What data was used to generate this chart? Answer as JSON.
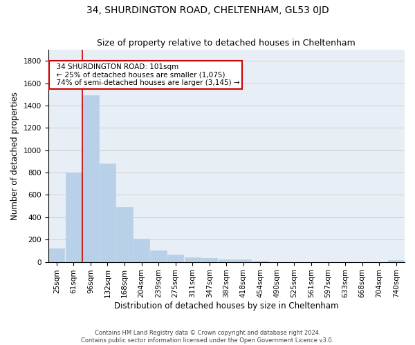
{
  "title": "34, SHURDINGTON ROAD, CHELTENHAM, GL53 0JD",
  "subtitle": "Size of property relative to detached houses in Cheltenham",
  "xlabel": "Distribution of detached houses by size in Cheltenham",
  "ylabel": "Number of detached properties",
  "footer_line1": "Contains HM Land Registry data © Crown copyright and database right 2024.",
  "footer_line2": "Contains public sector information licensed under the Open Government Licence v3.0.",
  "categories": [
    "25sqm",
    "61sqm",
    "96sqm",
    "132sqm",
    "168sqm",
    "204sqm",
    "239sqm",
    "275sqm",
    "311sqm",
    "347sqm",
    "382sqm",
    "418sqm",
    "454sqm",
    "490sqm",
    "525sqm",
    "561sqm",
    "597sqm",
    "633sqm",
    "668sqm",
    "704sqm",
    "740sqm"
  ],
  "values": [
    120,
    800,
    1490,
    880,
    490,
    205,
    105,
    65,
    40,
    35,
    25,
    20,
    10,
    0,
    0,
    0,
    0,
    0,
    0,
    0,
    15
  ],
  "bar_color": "#b8d0e8",
  "bar_edgecolor": "#b8d0e8",
  "annotation_text_line1": "  34 SHURDINGTON ROAD: 101sqm",
  "annotation_text_line2": "  ← 25% of detached houses are smaller (1,075)",
  "annotation_text_line3": "  74% of semi-detached houses are larger (3,145) →",
  "annotation_box_edgecolor": "#cc0000",
  "annotation_box_facecolor": "#ffffff",
  "vline_x": 2.0,
  "vline_color": "#cc0000",
  "ylim": [
    0,
    1900
  ],
  "yticks": [
    0,
    200,
    400,
    600,
    800,
    1000,
    1200,
    1400,
    1600,
    1800
  ],
  "grid_color": "#d0d0d0",
  "bg_color": "#e8eef5",
  "title_fontsize": 10,
  "subtitle_fontsize": 9,
  "axis_label_fontsize": 8.5,
  "tick_fontsize": 7.5,
  "annotation_fontsize": 7.5
}
